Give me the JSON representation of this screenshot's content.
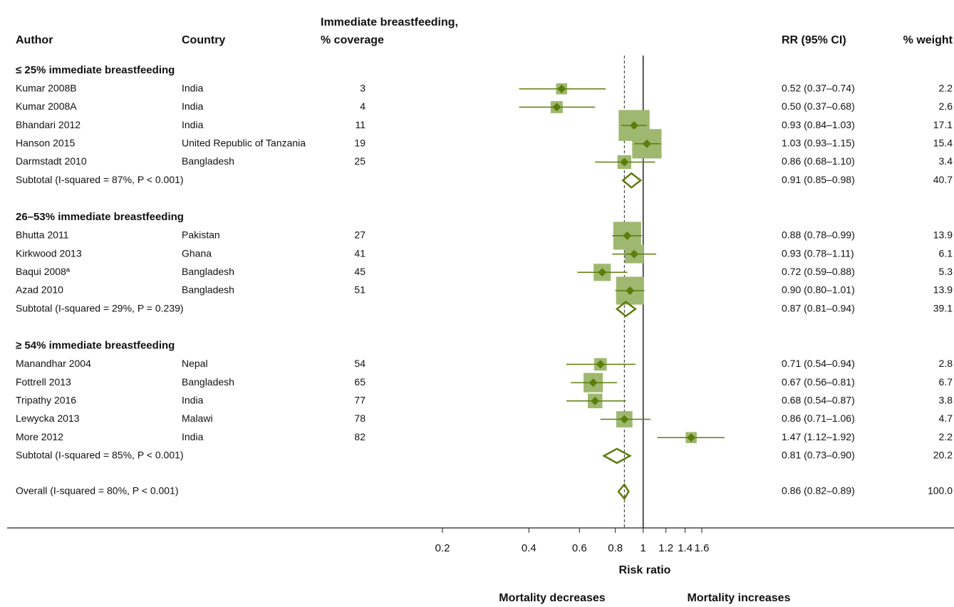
{
  "chart_data": {
    "type": "forest",
    "headers": {
      "author": "Author",
      "country": "Country",
      "coverage": [
        "Immediate breastfeeding,",
        "% coverage"
      ],
      "rr": "RR (95% CI)",
      "weight": "% weight"
    },
    "groups": [
      {
        "title": "≤ 25% immediate breastfeeding",
        "rows": [
          {
            "author": "Kumar 2008B",
            "country": "India",
            "coverage": 3,
            "rr": 0.52,
            "lo": 0.37,
            "hi": 0.74,
            "ci_label": "0.52 (0.37–0.74)",
            "weight": 2.2
          },
          {
            "author": "Kumar 2008A",
            "country": "India",
            "coverage": 4,
            "rr": 0.5,
            "lo": 0.37,
            "hi": 0.68,
            "ci_label": "0.50 (0.37–0.68)",
            "weight": 2.6
          },
          {
            "author": "Bhandari 2012",
            "country": "India",
            "coverage": 11,
            "rr": 0.93,
            "lo": 0.84,
            "hi": 1.03,
            "ci_label": "0.93 (0.84–1.03)",
            "weight": 17.1
          },
          {
            "author": "Hanson 2015",
            "country": "United Republic of Tanzania",
            "coverage": 19,
            "rr": 1.03,
            "lo": 0.93,
            "hi": 1.15,
            "ci_label": "1.03 (0.93–1.15)",
            "weight": 15.4
          },
          {
            "author": "Darmstadt 2010",
            "country": "Bangladesh",
            "coverage": 25,
            "rr": 0.86,
            "lo": 0.68,
            "hi": 1.1,
            "ci_label": "0.86 (0.68–1.10)",
            "weight": 3.4
          }
        ],
        "subtotal": {
          "label": "Subtotal  (I-squared = 87%, P < 0.001)",
          "rr": 0.91,
          "lo": 0.85,
          "hi": 0.98,
          "ci_label": "0.91 (0.85–0.98)",
          "weight": 40.7
        }
      },
      {
        "title": "26–53% immediate breastfeeding",
        "rows": [
          {
            "author": "Bhutta 2011",
            "country": "Pakistan",
            "coverage": 27,
            "rr": 0.88,
            "lo": 0.78,
            "hi": 0.99,
            "ci_label": "0.88 (0.78–0.99)",
            "weight": 13.9
          },
          {
            "author": "Kirkwood 2013",
            "country": "Ghana",
            "coverage": 41,
            "rr": 0.93,
            "lo": 0.78,
            "hi": 1.11,
            "ci_label": "0.93 (0.78–1.11)",
            "weight": 6.1
          },
          {
            "author": "Baqui 2008ª",
            "country": "Bangladesh",
            "coverage": 45,
            "rr": 0.72,
            "lo": 0.59,
            "hi": 0.88,
            "ci_label": "0.72 (0.59–0.88)",
            "weight": 5.3
          },
          {
            "author": "Azad 2010",
            "country": "Bangladesh",
            "coverage": 51,
            "rr": 0.9,
            "lo": 0.8,
            "hi": 1.01,
            "ci_label": "0.90 (0.80–1.01)",
            "weight": 13.9
          }
        ],
        "subtotal": {
          "label": "Subtotal  (I-squared = 29%, P = 0.239)",
          "rr": 0.87,
          "lo": 0.81,
          "hi": 0.94,
          "ci_label": "0.87 (0.81–0.94)",
          "weight": 39.1
        }
      },
      {
        "title": "≥ 54% immediate breastfeeding",
        "rows": [
          {
            "author": "Manandhar 2004",
            "country": "Nepal",
            "coverage": 54,
            "rr": 0.71,
            "lo": 0.54,
            "hi": 0.94,
            "ci_label": "0.71 (0.54–0.94)",
            "weight": 2.8
          },
          {
            "author": "Fottrell 2013",
            "country": "Bangladesh",
            "coverage": 65,
            "rr": 0.67,
            "lo": 0.56,
            "hi": 0.81,
            "ci_label": "0.67 (0.56–0.81)",
            "weight": 6.7
          },
          {
            "author": "Tripathy 2016",
            "country": "India",
            "coverage": 77,
            "rr": 0.68,
            "lo": 0.54,
            "hi": 0.87,
            "ci_label": "0.68 (0.54–0.87)",
            "weight": 3.8
          },
          {
            "author": "Lewycka 2013",
            "country": "Malawi",
            "coverage": 78,
            "rr": 0.86,
            "lo": 0.71,
            "hi": 1.06,
            "ci_label": "0.86 (0.71–1.06)",
            "weight": 4.7
          },
          {
            "author": "More 2012",
            "country": "India",
            "coverage": 82,
            "rr": 1.47,
            "lo": 1.12,
            "hi": 1.92,
            "ci_label": "1.47 (1.12–1.92)",
            "weight": 2.2
          }
        ],
        "subtotal": {
          "label": "Subtotal  (I-squared = 85%, P < 0.001)",
          "rr": 0.81,
          "lo": 0.73,
          "hi": 0.9,
          "ci_label": "0.81 (0.73–0.90)",
          "weight": 20.2
        }
      }
    ],
    "overall": {
      "label": "Overall  (I-squared = 80%, P < 0.001)",
      "rr": 0.86,
      "lo": 0.82,
      "hi": 0.89,
      "ci_label": "0.86 (0.82–0.89)",
      "weight": 100,
      "weight_label": "100.0"
    },
    "xlim": [
      0.2,
      1.6
    ],
    "xticks": [
      0.2,
      0.4,
      0.6,
      0.8,
      1,
      1.2,
      1.4,
      1.6
    ],
    "log_x": true,
    "reference": 1,
    "xlabel": "Risk ratio",
    "annotations": [
      "Mortality decreases",
      "Mortality increases"
    ],
    "colors": {
      "marker": "#5b7d0a",
      "box": "#9fb870"
    }
  }
}
